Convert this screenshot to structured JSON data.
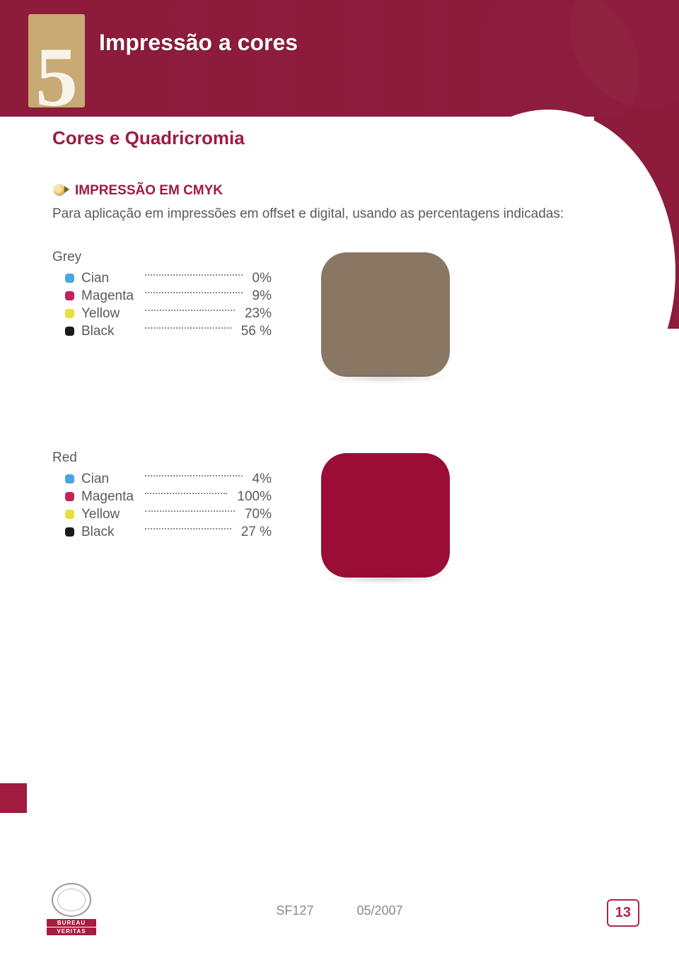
{
  "chapter": {
    "number": "5",
    "title": "Impressão a cores"
  },
  "section": {
    "heading": "Cores e Quadricromia"
  },
  "cmyk": {
    "heading": "IMPRESSÃO EM CMYK",
    "intro": "Para aplicação em impressões em offset e digital, usando as percentagens indicadas:"
  },
  "chips": {
    "cian": "#4aa6e0",
    "magenta": "#c7205f",
    "yellow": "#e5e03a",
    "black": "#1a1a1a"
  },
  "grey": {
    "name": "Grey",
    "swatch_color": "#8a7763",
    "cian": {
      "label": "Cian",
      "value": "0%"
    },
    "magenta": {
      "label": "Magenta",
      "value": "9%"
    },
    "yellow": {
      "label": "Yellow",
      "value": "23%"
    },
    "black": {
      "label": "Black",
      "value": "56 %"
    }
  },
  "red": {
    "name": "Red",
    "swatch_color": "#9a0d35",
    "cian": {
      "label": "Cian",
      "value": "4%"
    },
    "magenta": {
      "label": "Magenta",
      "value": "100%"
    },
    "yellow": {
      "label": "Yellow",
      "value": "70%"
    },
    "black": {
      "label": "Black",
      "value": "27 %"
    }
  },
  "footer": {
    "code": "SF127",
    "date": "05/2007",
    "page": "13",
    "logo_line1": "BUREAU",
    "logo_line2": "VERITAS"
  },
  "palette": {
    "brand_red": "#9f1b3f",
    "header_red": "#8c1b3c",
    "badge_gold": "#c7aa74",
    "text_grey": "#5a5a5a"
  }
}
